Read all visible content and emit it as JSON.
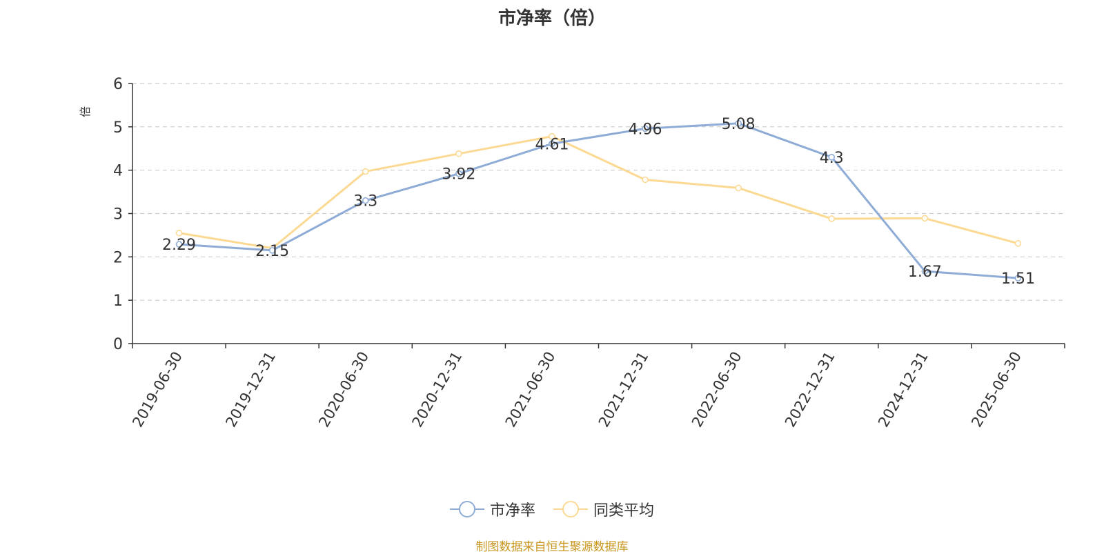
{
  "chart_data": {
    "type": "line",
    "title": "市净率（倍）",
    "ylabel": "倍",
    "ylim": [
      0,
      6
    ],
    "yticks": [
      0,
      1,
      2,
      3,
      4,
      5,
      6
    ],
    "grid": true,
    "legend_position": "bottom",
    "categories": [
      "2019-06-30",
      "2019-12-31",
      "2020-06-30",
      "2020-12-31",
      "2021-06-30",
      "2021-12-31",
      "2022-06-30",
      "2022-12-31",
      "2024-12-31",
      "2025-06-30"
    ],
    "series": [
      {
        "name": "市净率",
        "color": "#8eacd6",
        "show_labels": true,
        "values": [
          2.29,
          2.15,
          3.3,
          3.92,
          4.61,
          4.96,
          5.08,
          4.3,
          1.67,
          1.51
        ],
        "labels": [
          "2.29",
          "2.15",
          "3.3",
          "3.92",
          "4.61",
          "4.96",
          "5.08",
          "4.3",
          "1.67",
          "1.51"
        ]
      },
      {
        "name": "同类平均",
        "color": "#fcd993",
        "show_labels": false,
        "values": [
          2.55,
          2.2,
          3.97,
          4.38,
          4.78,
          3.78,
          3.59,
          2.88,
          2.89,
          2.31
        ]
      }
    ]
  },
  "source": "制图数据来自恒生聚源数据库"
}
